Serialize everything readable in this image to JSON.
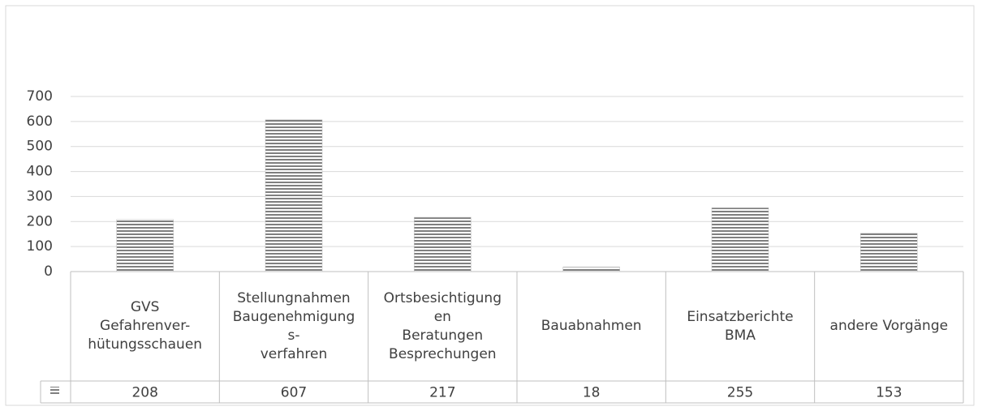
{
  "chart_data": {
    "type": "bar",
    "categories": [
      "GVS\nGefahrenver-\nhütungsschauen",
      "Stellungnahmen\nBaugenehmigung\ns-\nverfahren",
      "Ortsbesichtigung\nen\nBeratungen\nBesprechungen",
      "Bauabnahmen",
      "Einsatzberichte\nBMA",
      "andere Vorgänge"
    ],
    "values": [
      208,
      607,
      217,
      18,
      255,
      153
    ],
    "color": "#7f7f7f",
    "ylim": [
      0,
      700
    ],
    "yticks": [
      0,
      100,
      200,
      300,
      400,
      500,
      600,
      700
    ],
    "grid": true,
    "data_table": true
  }
}
